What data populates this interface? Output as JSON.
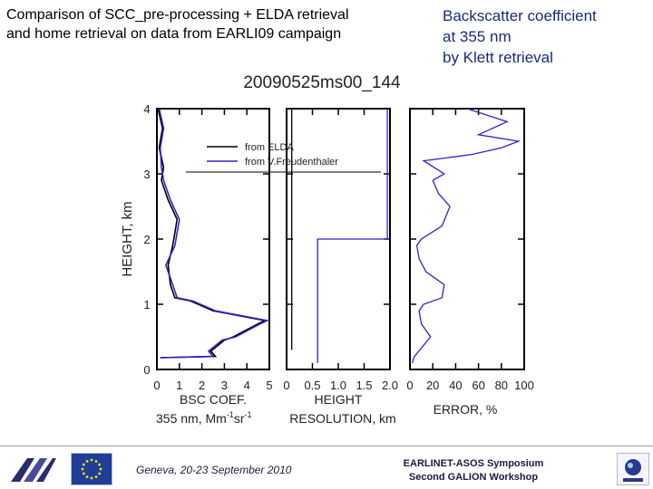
{
  "header": {
    "title_line1": "Comparison of SCC_pre-processing + ELDA retrieval",
    "title_line2": "and home retrieval on data from EARLI09 campaign",
    "right_line1": "Backscatter coefficient",
    "right_line2": "at 355 nm",
    "right_line3": "by Klett retrieval"
  },
  "footer": {
    "location": "Geneva, 20-23 September 2010",
    "event_line1": "EARLINET-ASOS Symposium",
    "event_line2": "Second GALION Workshop"
  },
  "colors": {
    "elda": "#000000",
    "freudenthaler": "#3322cc"
  },
  "chart_data": [
    {
      "type": "line",
      "title": "20090525ms00_144",
      "ylabel": "HEIGHT, km",
      "xlabel_line1": "BSC COEF.",
      "xlabel_line2": "355 nm, Mm",
      "xlabel_sup1": "-1",
      "xlabel_mid": "sr",
      "xlabel_sup2": "-1",
      "xlim": [
        0,
        5
      ],
      "ylim": [
        0,
        4
      ],
      "xticks": [
        "0",
        "1",
        "2",
        "3",
        "4",
        "5"
      ],
      "yticks": [
        "0",
        "1",
        "2",
        "3",
        "4"
      ],
      "legend": [
        "from ELDA",
        "from V.Freudenthaler"
      ],
      "legend_position": "top-right",
      "series": [
        {
          "name": "from ELDA",
          "x": [
            0.15,
            2.6,
            2.4,
            3.0,
            3.4,
            4.5,
            4.8,
            2.5,
            1.5,
            0.8,
            0.6,
            0.5,
            0.7,
            0.9,
            0.5,
            0.2,
            0.3,
            0.1,
            0.25,
            0.05
          ],
          "y": [
            0.18,
            0.2,
            0.28,
            0.45,
            0.5,
            0.7,
            0.75,
            0.9,
            1.05,
            1.1,
            1.3,
            1.6,
            1.9,
            2.3,
            2.6,
            2.9,
            3.1,
            3.4,
            3.7,
            4.0
          ]
        },
        {
          "name": "from V.Freudenthaler",
          "x": [
            0.15,
            2.5,
            2.3,
            2.9,
            3.5,
            4.6,
            4.9,
            2.6,
            1.6,
            0.9,
            0.7,
            0.4,
            0.8,
            1.0,
            0.6,
            0.3,
            0.2,
            0.15,
            0.3,
            0.1
          ],
          "y": [
            0.18,
            0.2,
            0.28,
            0.45,
            0.5,
            0.7,
            0.75,
            0.9,
            1.05,
            1.1,
            1.3,
            1.6,
            1.9,
            2.3,
            2.6,
            2.9,
            3.1,
            3.4,
            3.7,
            4.0
          ]
        }
      ]
    },
    {
      "type": "line",
      "xlabel_line1": "HEIGHT",
      "xlabel_line2": "RESOLUTION, km",
      "xlim": [
        0,
        2.0
      ],
      "ylim": [
        0,
        4
      ],
      "xticks": [
        "0",
        "0.5",
        "1.0",
        "1.5",
        "2.0"
      ],
      "series": [
        {
          "name": "from ELDA",
          "x": [
            0.1,
            0.1
          ],
          "y": [
            0.3,
            4.0
          ]
        },
        {
          "name": "from V.Freudenthaler",
          "x": [
            0.6,
            0.6,
            1.95,
            1.95
          ],
          "y": [
            0.1,
            2.0,
            2.0,
            4.0
          ]
        }
      ]
    },
    {
      "type": "line",
      "xlabel_line1": "ERROR, %",
      "xlim": [
        0,
        100
      ],
      "ylim": [
        0,
        4
      ],
      "xticks": [
        "0",
        "20",
        "40",
        "60",
        "80",
        "100"
      ],
      "series": [
        {
          "name": "from V.Freudenthaler",
          "x": [
            2,
            4,
            18,
            10,
            8,
            12,
            28,
            30,
            22,
            14,
            8,
            6,
            10,
            28,
            35,
            25,
            20,
            30,
            12,
            55,
            80,
            95,
            60,
            85,
            50
          ],
          "y": [
            0.1,
            0.2,
            0.5,
            0.7,
            0.9,
            1.0,
            1.1,
            1.3,
            1.4,
            1.5,
            1.7,
            1.9,
            2.0,
            2.2,
            2.5,
            2.7,
            2.9,
            3.0,
            3.2,
            3.3,
            3.4,
            3.5,
            3.6,
            3.8,
            4.0
          ]
        }
      ]
    }
  ]
}
